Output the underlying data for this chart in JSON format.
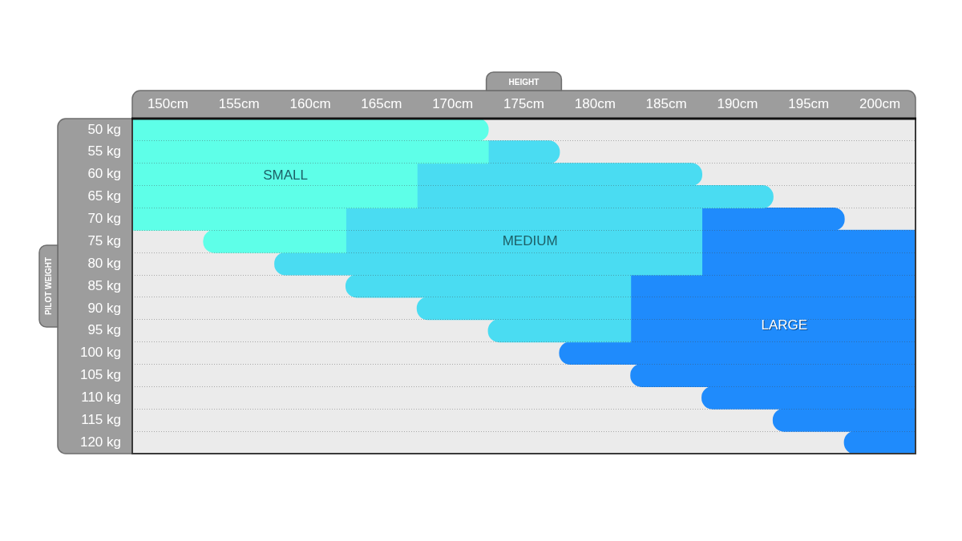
{
  "chart_data": {
    "type": "bar",
    "orientation": "horizontal",
    "xlabel": "HEIGHT",
    "ylabel": "PILOT WEIGHT",
    "categories": [
      "50 kg",
      "55 kg",
      "60 kg",
      "65 kg",
      "70 kg",
      "75 kg",
      "80 kg",
      "85 kg",
      "90 kg",
      "95 kg",
      "100 kg",
      "105 kg",
      "110 kg",
      "115 kg",
      "120 kg"
    ],
    "xlim": [
      147.5,
      202.5
    ],
    "xticks": [
      {
        "value": 150,
        "label": "150cm"
      },
      {
        "value": 155,
        "label": "155cm"
      },
      {
        "value": 160,
        "label": "160cm"
      },
      {
        "value": 165,
        "label": "165cm"
      },
      {
        "value": 170,
        "label": "170cm"
      },
      {
        "value": 175,
        "label": "175cm"
      },
      {
        "value": 180,
        "label": "180cm"
      },
      {
        "value": 185,
        "label": "185cm"
      },
      {
        "value": 190,
        "label": "190cm"
      },
      {
        "value": 195,
        "label": "195cm"
      },
      {
        "value": 200,
        "label": "200cm"
      }
    ],
    "grid": "y",
    "series": [
      {
        "name": "SMALL",
        "color": "#5effe8",
        "base": [
          147.5,
          147.5,
          147.5,
          147.5,
          147.5,
          152.5,
          null,
          null,
          null,
          null,
          null,
          null,
          null,
          null,
          null
        ],
        "values": [
          25,
          25,
          20,
          20,
          15,
          10,
          null,
          null,
          null,
          null,
          null,
          null,
          null,
          null,
          null
        ]
      },
      {
        "name": "MEDIUM",
        "color": "#4adcf2",
        "base": [
          null,
          172.5,
          167.5,
          167.5,
          162.5,
          162.5,
          157.5,
          162.5,
          167.5,
          172.5,
          null,
          null,
          null,
          null,
          null
        ],
        "values": [
          null,
          5,
          20,
          25,
          25,
          25,
          30,
          20,
          15,
          10,
          null,
          null,
          null,
          null,
          null
        ]
      },
      {
        "name": "LARGE",
        "color": "#1f8bfc",
        "base": [
          null,
          null,
          null,
          null,
          187.5,
          187.5,
          187.5,
          182.5,
          182.5,
          182.5,
          177.5,
          182.5,
          187.5,
          192.5,
          197.5
        ],
        "values": [
          null,
          null,
          null,
          null,
          10,
          15,
          15,
          20,
          20,
          20,
          25,
          20,
          15,
          10,
          5
        ]
      }
    ]
  }
}
